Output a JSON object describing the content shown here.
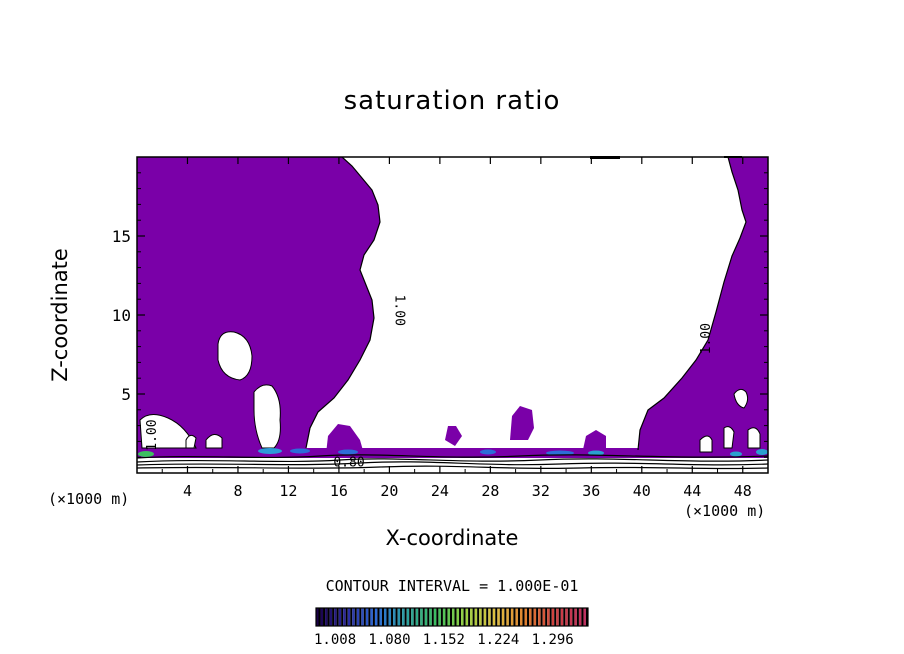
{
  "chart_data": {
    "type": "contour",
    "title": "saturation ratio",
    "xlabel": "X-coordinate",
    "ylabel": "Z-coordinate",
    "x_unit": "(×1000 m)",
    "z_unit": "(×1000 m)",
    "xlim": [
      0,
      50
    ],
    "ylim": [
      0,
      20
    ],
    "x_ticks": [
      4,
      8,
      12,
      16,
      20,
      24,
      28,
      32,
      36,
      40,
      44,
      48
    ],
    "y_ticks": [
      5,
      10,
      15
    ],
    "contour_interval": "CONTOUR INTERVAL = 1.000E-01",
    "contour_labels": [
      {
        "text": "1.00",
        "x": 20.5,
        "z": 10.3
      },
      {
        "text": "1.00",
        "x": 45.4,
        "z": 8.5
      },
      {
        "text": "1.00",
        "x": 1.5,
        "z": 2.4
      },
      {
        "text": "0.80",
        "x": 16.8,
        "z": 0.4
      }
    ],
    "fill_color": "#7a00a8",
    "colorbar": {
      "ticks": [
        "1.008",
        "1.080",
        "1.152",
        "1.224",
        "1.296"
      ],
      "range": [
        1.008,
        1.368
      ],
      "colors": [
        "#1a0048",
        "#2a2aa0",
        "#2d6cd8",
        "#2aa0a0",
        "#3cc060",
        "#9ad040",
        "#e0c040",
        "#e08030",
        "#d04040",
        "#c03060"
      ]
    }
  }
}
